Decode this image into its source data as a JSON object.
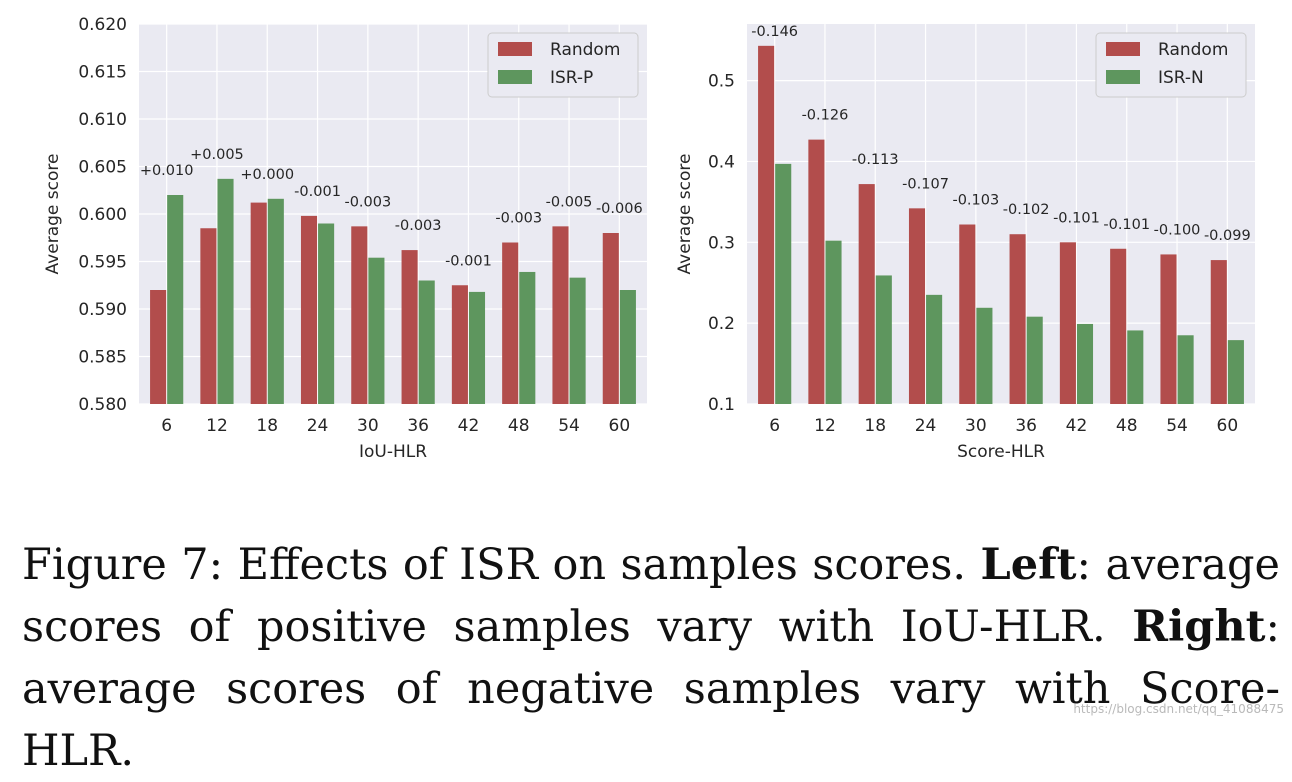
{
  "chart_data": [
    {
      "type": "bar",
      "title": "",
      "xlabel": "IoU-HLR",
      "ylabel": "Average score",
      "categories": [
        "6",
        "12",
        "18",
        "24",
        "30",
        "36",
        "42",
        "48",
        "54",
        "60"
      ],
      "series": [
        {
          "name": "Random",
          "color": "#b24d4c",
          "values": [
            0.592,
            0.5985,
            0.6012,
            0.5998,
            0.5987,
            0.5962,
            0.5925,
            0.597,
            0.5987,
            0.598
          ]
        },
        {
          "name": "ISR-P",
          "color": "#5e965e",
          "values": [
            0.602,
            0.6037,
            0.6016,
            0.599,
            0.5954,
            0.593,
            0.5918,
            0.5939,
            0.5933,
            0.592
          ]
        }
      ],
      "annotations": [
        "+0.010",
        "+0.005",
        "+0.000",
        "-0.001",
        "-0.003",
        "-0.003",
        "-0.001",
        "-0.003",
        "-0.005",
        "-0.006"
      ],
      "ylim": [
        0.58,
        0.62
      ],
      "yticks": [
        "0.580",
        "0.585",
        "0.590",
        "0.595",
        "0.600",
        "0.605",
        "0.610",
        "0.615",
        "0.620"
      ],
      "legend_position": "top-right",
      "grid": true
    },
    {
      "type": "bar",
      "title": "",
      "xlabel": "Score-HLR",
      "ylabel": "Average score",
      "categories": [
        "6",
        "12",
        "18",
        "24",
        "30",
        "36",
        "42",
        "48",
        "54",
        "60"
      ],
      "series": [
        {
          "name": "Random",
          "color": "#b24d4c",
          "values": [
            0.543,
            0.427,
            0.372,
            0.342,
            0.322,
            0.31,
            0.3,
            0.292,
            0.285,
            0.278
          ]
        },
        {
          "name": "ISR-N",
          "color": "#5e965e",
          "values": [
            0.397,
            0.302,
            0.259,
            0.235,
            0.219,
            0.208,
            0.199,
            0.191,
            0.185,
            0.179
          ]
        }
      ],
      "annotations": [
        "-0.146",
        "-0.126",
        "-0.113",
        "-0.107",
        "-0.103",
        "-0.102",
        "-0.101",
        "-0.101",
        "-0.100",
        "-0.099"
      ],
      "ylim": [
        0.1,
        0.57
      ],
      "yticks": [
        "0.1",
        "0.2",
        "0.3",
        "0.4",
        "0.5"
      ],
      "legend_position": "top-right",
      "grid": true
    }
  ],
  "caption": {
    "label": "Figure 7: Effects of ISR on samples scores. ",
    "left_bold": "Left",
    "left_text": ": average scores of positive samples vary with IoU-HLR. ",
    "right_bold": "Right",
    "right_text": ": average scores of negative samples vary with Score-HLR."
  },
  "watermark": "https://blog.csdn.net/qq_41088475"
}
